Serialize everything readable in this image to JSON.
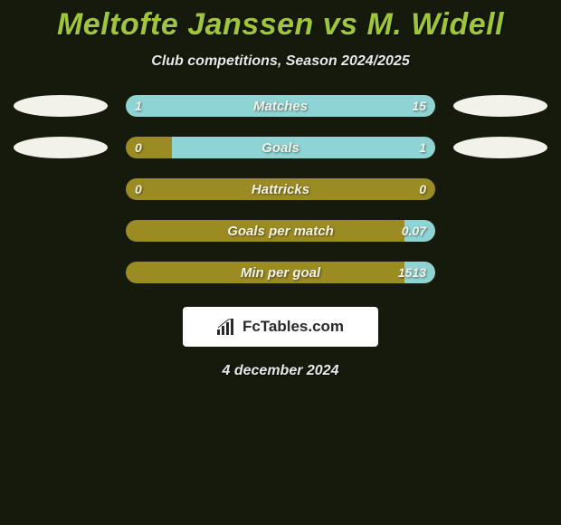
{
  "title": "Meltofte Janssen vs M. Widell",
  "subtitle": "Club competitions, Season 2024/2025",
  "date": "4 december 2024",
  "footer_logo_text": "FcTables.com",
  "colors": {
    "background": "#161a0c",
    "title": "#9fc53a",
    "bar_track": "#9b8b23",
    "bar_fill_teal": "#8fd4d4",
    "ellipse_white": "#f2f2ea",
    "text": "#f4f2e8"
  },
  "rows": [
    {
      "label": "Matches",
      "left_value": "1",
      "right_value": "15",
      "left_ellipse_color": "#f2f2ea",
      "right_ellipse_color": "#f2f2ea",
      "left_fill_pct": 6,
      "right_fill_pct": 94,
      "left_fill_color": "#8fd4d4",
      "right_fill_color": "#8fd4d4"
    },
    {
      "label": "Goals",
      "left_value": "0",
      "right_value": "1",
      "left_ellipse_color": "#f2f2ea",
      "right_ellipse_color": "#f2f2ea",
      "left_fill_pct": 0,
      "right_fill_pct": 85,
      "left_fill_color": "#8fd4d4",
      "right_fill_color": "#8fd4d4"
    },
    {
      "label": "Hattricks",
      "left_value": "0",
      "right_value": "0",
      "left_ellipse_color": null,
      "right_ellipse_color": null,
      "left_fill_pct": 0,
      "right_fill_pct": 0,
      "left_fill_color": "#8fd4d4",
      "right_fill_color": "#8fd4d4"
    },
    {
      "label": "Goals per match",
      "left_value": "",
      "right_value": "0.07",
      "left_ellipse_color": null,
      "right_ellipse_color": null,
      "left_fill_pct": 0,
      "right_fill_pct": 10,
      "left_fill_color": "#8fd4d4",
      "right_fill_color": "#8fd4d4"
    },
    {
      "label": "Min per goal",
      "left_value": "",
      "right_value": "1513",
      "left_ellipse_color": null,
      "right_ellipse_color": null,
      "left_fill_pct": 0,
      "right_fill_pct": 10,
      "left_fill_color": "#8fd4d4",
      "right_fill_color": "#8fd4d4"
    }
  ]
}
